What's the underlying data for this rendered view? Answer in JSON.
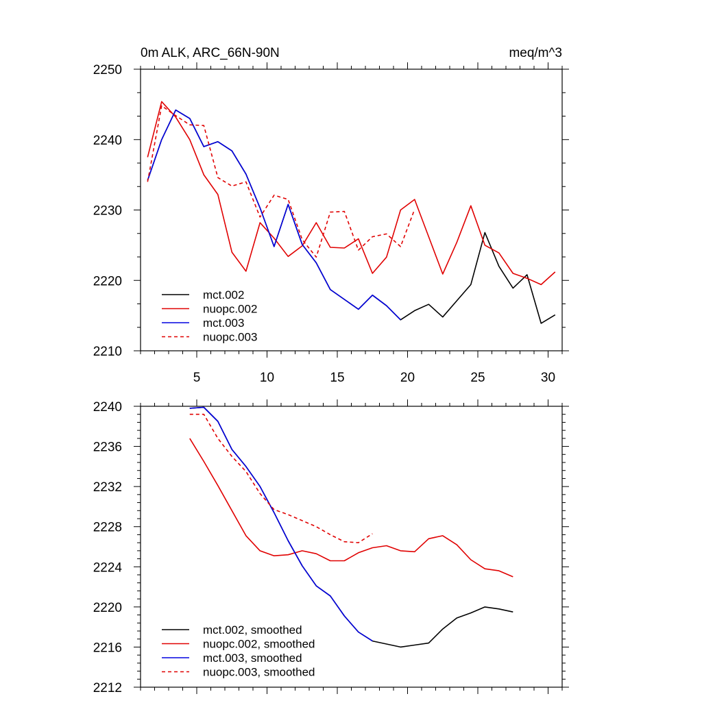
{
  "chart_data": [
    {
      "type": "line",
      "title_left": "0m ALK, ARC_66N-90N",
      "title_right": "meq/m^3",
      "xlabel": "",
      "ylabel": "",
      "xlim": [
        1,
        31
      ],
      "ylim": [
        2210,
        2250
      ],
      "x_ticks": [
        5,
        10,
        15,
        20,
        25,
        30
      ],
      "y_ticks": [
        2210,
        2220,
        2230,
        2240,
        2250
      ],
      "legend_position": "bottom-left",
      "series": [
        {
          "name": "mct.002",
          "color": "#000000",
          "dash": "solid",
          "x": [
            1.5,
            2.5,
            3.5,
            4.5,
            5.5,
            6.5,
            7.5,
            8.5,
            9.5,
            10.5,
            11.5,
            12.5,
            13.5,
            14.5,
            15.5,
            16.5,
            17.5,
            18.5,
            19.5,
            20.5,
            21.5,
            22.5,
            23.5,
            24.5,
            25.5,
            26.5,
            27.5,
            28.5,
            29.5,
            30.5
          ],
          "values": [
            2234.2,
            2240.0,
            2244.2,
            2243.0,
            2239.0,
            2239.7,
            2238.4,
            2235.1,
            2230.3,
            2224.8,
            2230.8,
            2225.1,
            2222.5,
            2218.7,
            2217.3,
            2215.9,
            2217.9,
            2216.4,
            2214.4,
            2215.7,
            2216.6,
            2214.8,
            2217.1,
            2219.4,
            2226.8,
            2222.0,
            2218.9,
            2220.8,
            2213.9,
            2215.1
          ]
        },
        {
          "name": "nuopc.002",
          "color": "#e00000",
          "dash": "solid",
          "x": [
            1.5,
            2.5,
            3.5,
            4.5,
            5.5,
            6.5,
            7.5,
            8.5,
            9.5,
            10.5,
            11.5,
            12.5,
            13.5,
            14.5,
            15.5,
            16.5,
            17.5,
            18.5,
            19.5,
            20.5,
            21.5,
            22.5,
            23.5,
            24.5,
            25.5,
            26.5,
            27.5,
            28.5,
            29.5,
            30.5
          ],
          "values": [
            2237.5,
            2245.4,
            2243.2,
            2240.0,
            2235.0,
            2232.2,
            2224.0,
            2221.3,
            2228.2,
            2226.0,
            2223.4,
            2224.9,
            2228.2,
            2224.7,
            2224.6,
            2225.9,
            2221.0,
            2223.3,
            2230.0,
            2231.5,
            2226.2,
            2220.9,
            2225.4,
            2230.6,
            2225.0,
            2223.9,
            2221.0,
            2220.3,
            2219.4,
            2221.2
          ]
        },
        {
          "name": "mct.003",
          "color": "#0000e0",
          "dash": "solid",
          "x": [
            1.5,
            2.5,
            3.5,
            4.5,
            5.5,
            6.5,
            7.5,
            8.5,
            9.5,
            10.5,
            11.5,
            12.5,
            13.5,
            14.5,
            15.5,
            16.5,
            17.5,
            18.5,
            19.5
          ],
          "values": [
            2234.2,
            2240.0,
            2244.2,
            2243.0,
            2239.0,
            2239.7,
            2238.4,
            2235.1,
            2230.3,
            2224.8,
            2230.8,
            2225.1,
            2222.5,
            2218.7,
            2217.3,
            2215.9,
            2217.9,
            2216.4,
            2214.4
          ]
        },
        {
          "name": "nuopc.003",
          "color": "#e00000",
          "dash": "dashed",
          "x": [
            1.5,
            2.5,
            3.5,
            4.5,
            5.5,
            6.5,
            7.5,
            8.5,
            9.5,
            10.5,
            11.5,
            12.5,
            13.5,
            14.5,
            15.5,
            16.5,
            17.5,
            18.5,
            19.5,
            20.5
          ],
          "values": [
            2234.0,
            2244.8,
            2243.4,
            2242.1,
            2242.0,
            2234.6,
            2233.4,
            2234.0,
            2229.0,
            2232.1,
            2231.5,
            2225.8,
            2223.3,
            2229.7,
            2229.8,
            2224.3,
            2226.2,
            2226.6,
            2224.8,
            2230.1
          ]
        }
      ]
    },
    {
      "type": "line",
      "title_left": "",
      "title_right": "",
      "xlabel": "",
      "ylabel": "",
      "xlim": [
        1,
        31
      ],
      "ylim": [
        2212,
        2240
      ],
      "x_ticks": [
        5,
        10,
        15,
        20,
        25,
        30
      ],
      "x_tick_labels_shown": false,
      "y_ticks": [
        2212,
        2216,
        2220,
        2224,
        2228,
        2232,
        2236,
        2240
      ],
      "legend_position": "bottom-left",
      "series": [
        {
          "name": "mct.002, smoothed",
          "color": "#000000",
          "dash": "solid",
          "x": [
            4.5,
            5.5,
            6.5,
            7.5,
            8.5,
            9.5,
            10.5,
            11.5,
            12.5,
            13.5,
            14.5,
            15.5,
            16.5,
            17.5,
            18.5,
            19.5,
            20.5,
            21.5,
            22.5,
            23.5,
            24.5,
            25.5,
            26.5,
            27.5
          ],
          "values": [
            2239.8,
            2239.9,
            2238.5,
            2235.7,
            2234.0,
            2232.0,
            2229.4,
            2226.6,
            2224.1,
            2222.1,
            2221.1,
            2219.1,
            2217.5,
            2216.6,
            2216.3,
            2216.0,
            2216.2,
            2216.4,
            2217.8,
            2218.9,
            2219.4,
            2220.0,
            2219.8,
            2219.5
          ]
        },
        {
          "name": "nuopc.002, smoothed",
          "color": "#e00000",
          "dash": "solid",
          "x": [
            4.5,
            5.5,
            6.5,
            7.5,
            8.5,
            9.5,
            10.5,
            11.5,
            12.5,
            13.5,
            14.5,
            15.5,
            16.5,
            17.5,
            18.5,
            19.5,
            20.5,
            21.5,
            22.5,
            23.5,
            24.5,
            25.5,
            26.5,
            27.5
          ],
          "values": [
            2236.8,
            2234.5,
            2232.1,
            2229.6,
            2227.1,
            2225.6,
            2225.1,
            2225.2,
            2225.6,
            2225.3,
            2224.6,
            2224.6,
            2225.4,
            2225.9,
            2226.1,
            2225.6,
            2225.5,
            2226.8,
            2227.1,
            2226.2,
            2224.7,
            2223.8,
            2223.6,
            2223.0
          ]
        },
        {
          "name": "mct.003, smoothed",
          "color": "#0000e0",
          "dash": "solid",
          "x": [
            4.5,
            5.5,
            6.5,
            7.5,
            8.5,
            9.5,
            10.5,
            11.5,
            12.5,
            13.5,
            14.5,
            15.5,
            16.5,
            17.5
          ],
          "values": [
            2239.8,
            2239.9,
            2238.5,
            2235.7,
            2234.0,
            2232.0,
            2229.4,
            2226.6,
            2224.1,
            2222.1,
            2221.1,
            2219.1,
            2217.5,
            2216.6
          ]
        },
        {
          "name": "nuopc.003, smoothed",
          "color": "#e00000",
          "dash": "dashed",
          "x": [
            4.5,
            5.5,
            6.5,
            7.5,
            8.5,
            9.5,
            10.5,
            11.5,
            12.5,
            13.5,
            14.5,
            15.5,
            16.5,
            17.5
          ],
          "values": [
            2239.2,
            2239.2,
            2236.8,
            2235.0,
            2233.5,
            2231.3,
            2229.7,
            2229.2,
            2228.6,
            2228.0,
            2227.2,
            2226.5,
            2226.4,
            2227.3
          ]
        }
      ]
    }
  ]
}
